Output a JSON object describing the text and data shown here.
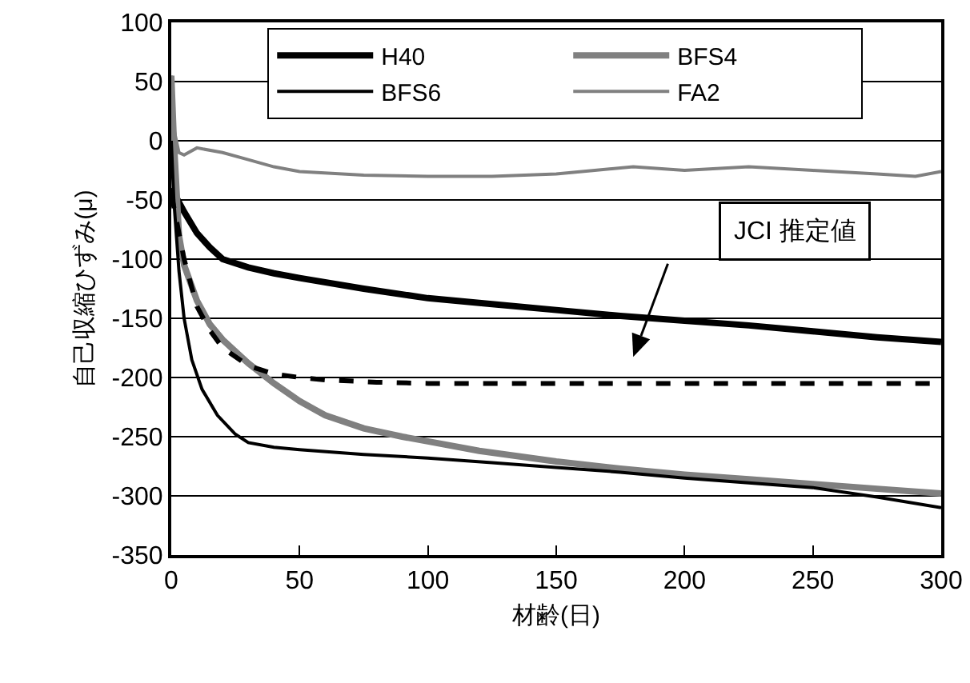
{
  "chart_data": {
    "type": "line",
    "xlabel": "材齢(日)",
    "ylabel": "自己収縮ひずみ(μ)",
    "xlim": [
      0,
      300
    ],
    "xticks": [
      0,
      50,
      100,
      150,
      200,
      250,
      300
    ],
    "ylim": [
      -350,
      100
    ],
    "yticks": [
      -350,
      -300,
      -250,
      -200,
      -150,
      -100,
      -50,
      0,
      50,
      100
    ],
    "grid": "y",
    "legend": "top left",
    "marker": "none",
    "series": [
      {
        "name": "H40",
        "color": "#000000",
        "x": [
          0,
          2,
          5,
          10,
          15,
          20,
          30,
          40,
          50,
          75,
          100,
          125,
          150,
          175,
          200,
          225,
          250,
          275,
          300
        ],
        "values": [
          -40,
          -48,
          -60,
          -78,
          -90,
          -100,
          -107,
          -112,
          -116,
          -125,
          -133,
          -138,
          -143,
          -148,
          -152,
          -156,
          -161,
          -166,
          -170
        ]
      },
      {
        "name": "BFS4",
        "color": "#808080",
        "x": [
          0,
          1,
          3,
          5,
          10,
          15,
          20,
          25,
          30,
          40,
          50,
          60,
          75,
          90,
          100,
          120,
          150,
          175,
          200,
          225,
          250,
          275,
          300
        ],
        "values": [
          55,
          0,
          -80,
          -105,
          -135,
          -155,
          -168,
          -178,
          -188,
          -205,
          -220,
          -232,
          -243,
          -250,
          -254,
          -262,
          -271,
          -277,
          -282,
          -286,
          -290,
          -294,
          -298
        ]
      },
      {
        "name": "BFS6",
        "color": "#000000",
        "x": [
          0,
          1,
          3,
          5,
          8,
          12,
          18,
          25,
          30,
          40,
          50,
          75,
          100,
          125,
          150,
          175,
          200,
          225,
          250,
          275,
          300
        ],
        "values": [
          0,
          -50,
          -110,
          -150,
          -185,
          -210,
          -232,
          -248,
          -255,
          -259,
          -261,
          -265,
          -268,
          -272,
          -276,
          -280,
          -285,
          -289,
          -293,
          -301,
          -310
        ]
      },
      {
        "name": "FA2",
        "color": "#808080",
        "x": [
          0,
          1,
          3,
          5,
          10,
          20,
          30,
          40,
          50,
          75,
          100,
          125,
          150,
          165,
          180,
          200,
          225,
          250,
          275,
          290,
          300
        ],
        "values": [
          55,
          10,
          -10,
          -12,
          -6,
          -10,
          -16,
          -22,
          -26,
          -29,
          -30,
          -30,
          -28,
          -25,
          -22,
          -25,
          -22,
          -25,
          -28,
          -30,
          -26
        ]
      },
      {
        "type": "line",
        "color": "#000000",
        "line_style": "dashed",
        "x": [
          0,
          5,
          10,
          15,
          20,
          30,
          40,
          50,
          60,
          80,
          100,
          150,
          200,
          250,
          300
        ],
        "values": [
          -45,
          -100,
          -140,
          -160,
          -175,
          -190,
          -197,
          -200,
          -202,
          -204,
          -205,
          -205,
          -205,
          -205,
          -205
        ]
      }
    ],
    "annotations": [
      "JCI 推定値"
    ]
  }
}
